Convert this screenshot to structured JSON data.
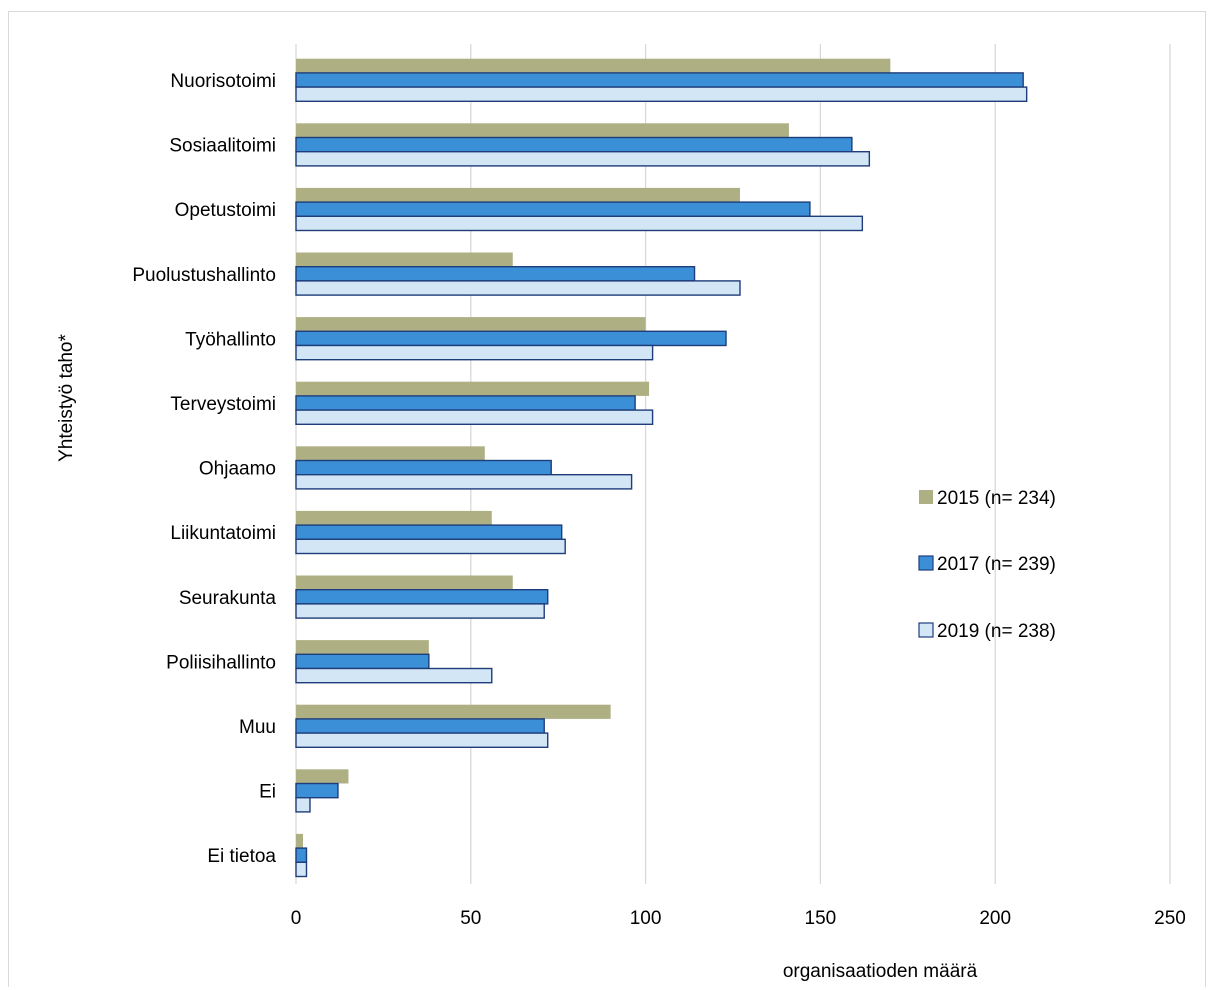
{
  "chart_data": {
    "type": "bar",
    "orientation": "horizontal",
    "title": "",
    "xlabel": "organisaatioden määrä",
    "ylabel": "Yhteistyö taho*",
    "xlim": [
      0,
      250
    ],
    "xticks": [
      0,
      50,
      100,
      150,
      200,
      250
    ],
    "grid": true,
    "legend_position": "right",
    "categories": [
      "Nuorisotoimi",
      "Sosiaalitoimi",
      "Opetustoimi",
      "Puolustushallinto",
      "Työhallinto",
      "Terveystoimi",
      "Ohjaamo",
      "Liikuntatoimi",
      "Seurakunta",
      "Poliisihallinto",
      "Muu",
      "Ei",
      "Ei tietoa"
    ],
    "series": [
      {
        "name": "2015 (n= 234)",
        "color": "#aeb083",
        "values": [
          170,
          141,
          127,
          62,
          100,
          101,
          54,
          56,
          62,
          38,
          90,
          15,
          2
        ]
      },
      {
        "name": "2017 (n= 239)",
        "color": "#3a8fd6",
        "values": [
          208,
          159,
          147,
          114,
          123,
          97,
          73,
          76,
          72,
          38,
          71,
          12,
          3
        ]
      },
      {
        "name": "2019 (n= 238)",
        "color": "#d2e6f5",
        "values": [
          209,
          164,
          162,
          127,
          102,
          102,
          96,
          77,
          71,
          56,
          72,
          4,
          3
        ]
      }
    ]
  }
}
